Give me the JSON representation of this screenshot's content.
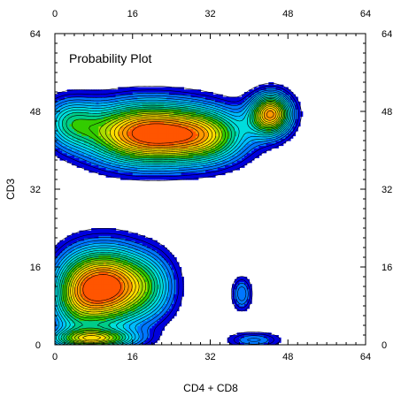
{
  "chart_data": {
    "type": "contour",
    "title": "Probability Plot",
    "xlabel": "CD4 + CD8",
    "ylabel": "CD3",
    "xlim": [
      0,
      64
    ],
    "ylim": [
      0,
      64
    ],
    "x_ticks": [
      "0",
      "16",
      "32",
      "48",
      "64"
    ],
    "y_ticks": [
      "0",
      "16",
      "32",
      "48",
      "64"
    ],
    "tick_values": [
      0,
      16,
      32,
      48,
      64
    ],
    "minor_tick_step": 2,
    "grid": false,
    "legend": "none",
    "color_levels": [
      "#0000dd",
      "#0077ff",
      "#00bbff",
      "#00dddd",
      "#00cc88",
      "#33cc00",
      "#aadd00",
      "#ffdd00",
      "#ff9900",
      "#ff5500"
    ],
    "contour_line_color": "#000000",
    "populations": [
      {
        "cx": 19,
        "cy": 43.5,
        "sx": 9,
        "sy": 4.5,
        "peak": 1.0
      },
      {
        "cx": 3,
        "cy": 46,
        "sx": 4,
        "sy": 3.5,
        "peak": 0.35
      },
      {
        "cx": 32,
        "cy": 43,
        "sx": 6,
        "sy": 4,
        "peak": 0.45
      },
      {
        "cx": 44.5,
        "cy": 47.5,
        "sx": 3,
        "sy": 3,
        "peak": 0.85
      },
      {
        "cx": 11,
        "cy": 12,
        "sx": 5.5,
        "sy": 5.5,
        "peak": 0.95
      },
      {
        "cx": 4,
        "cy": 10,
        "sx": 4,
        "sy": 6,
        "peak": 0.4
      },
      {
        "cx": 20,
        "cy": 12,
        "sx": 4,
        "sy": 5,
        "peak": 0.3
      },
      {
        "cx": 8,
        "cy": 1.2,
        "sx": 6,
        "sy": 1.4,
        "peak": 0.6
      },
      {
        "cx": 41,
        "cy": 1,
        "sx": 4,
        "sy": 1.2,
        "peak": 0.25
      },
      {
        "cx": 38.5,
        "cy": 10.5,
        "sx": 1.5,
        "sy": 2.5,
        "peak": 0.28
      }
    ]
  }
}
